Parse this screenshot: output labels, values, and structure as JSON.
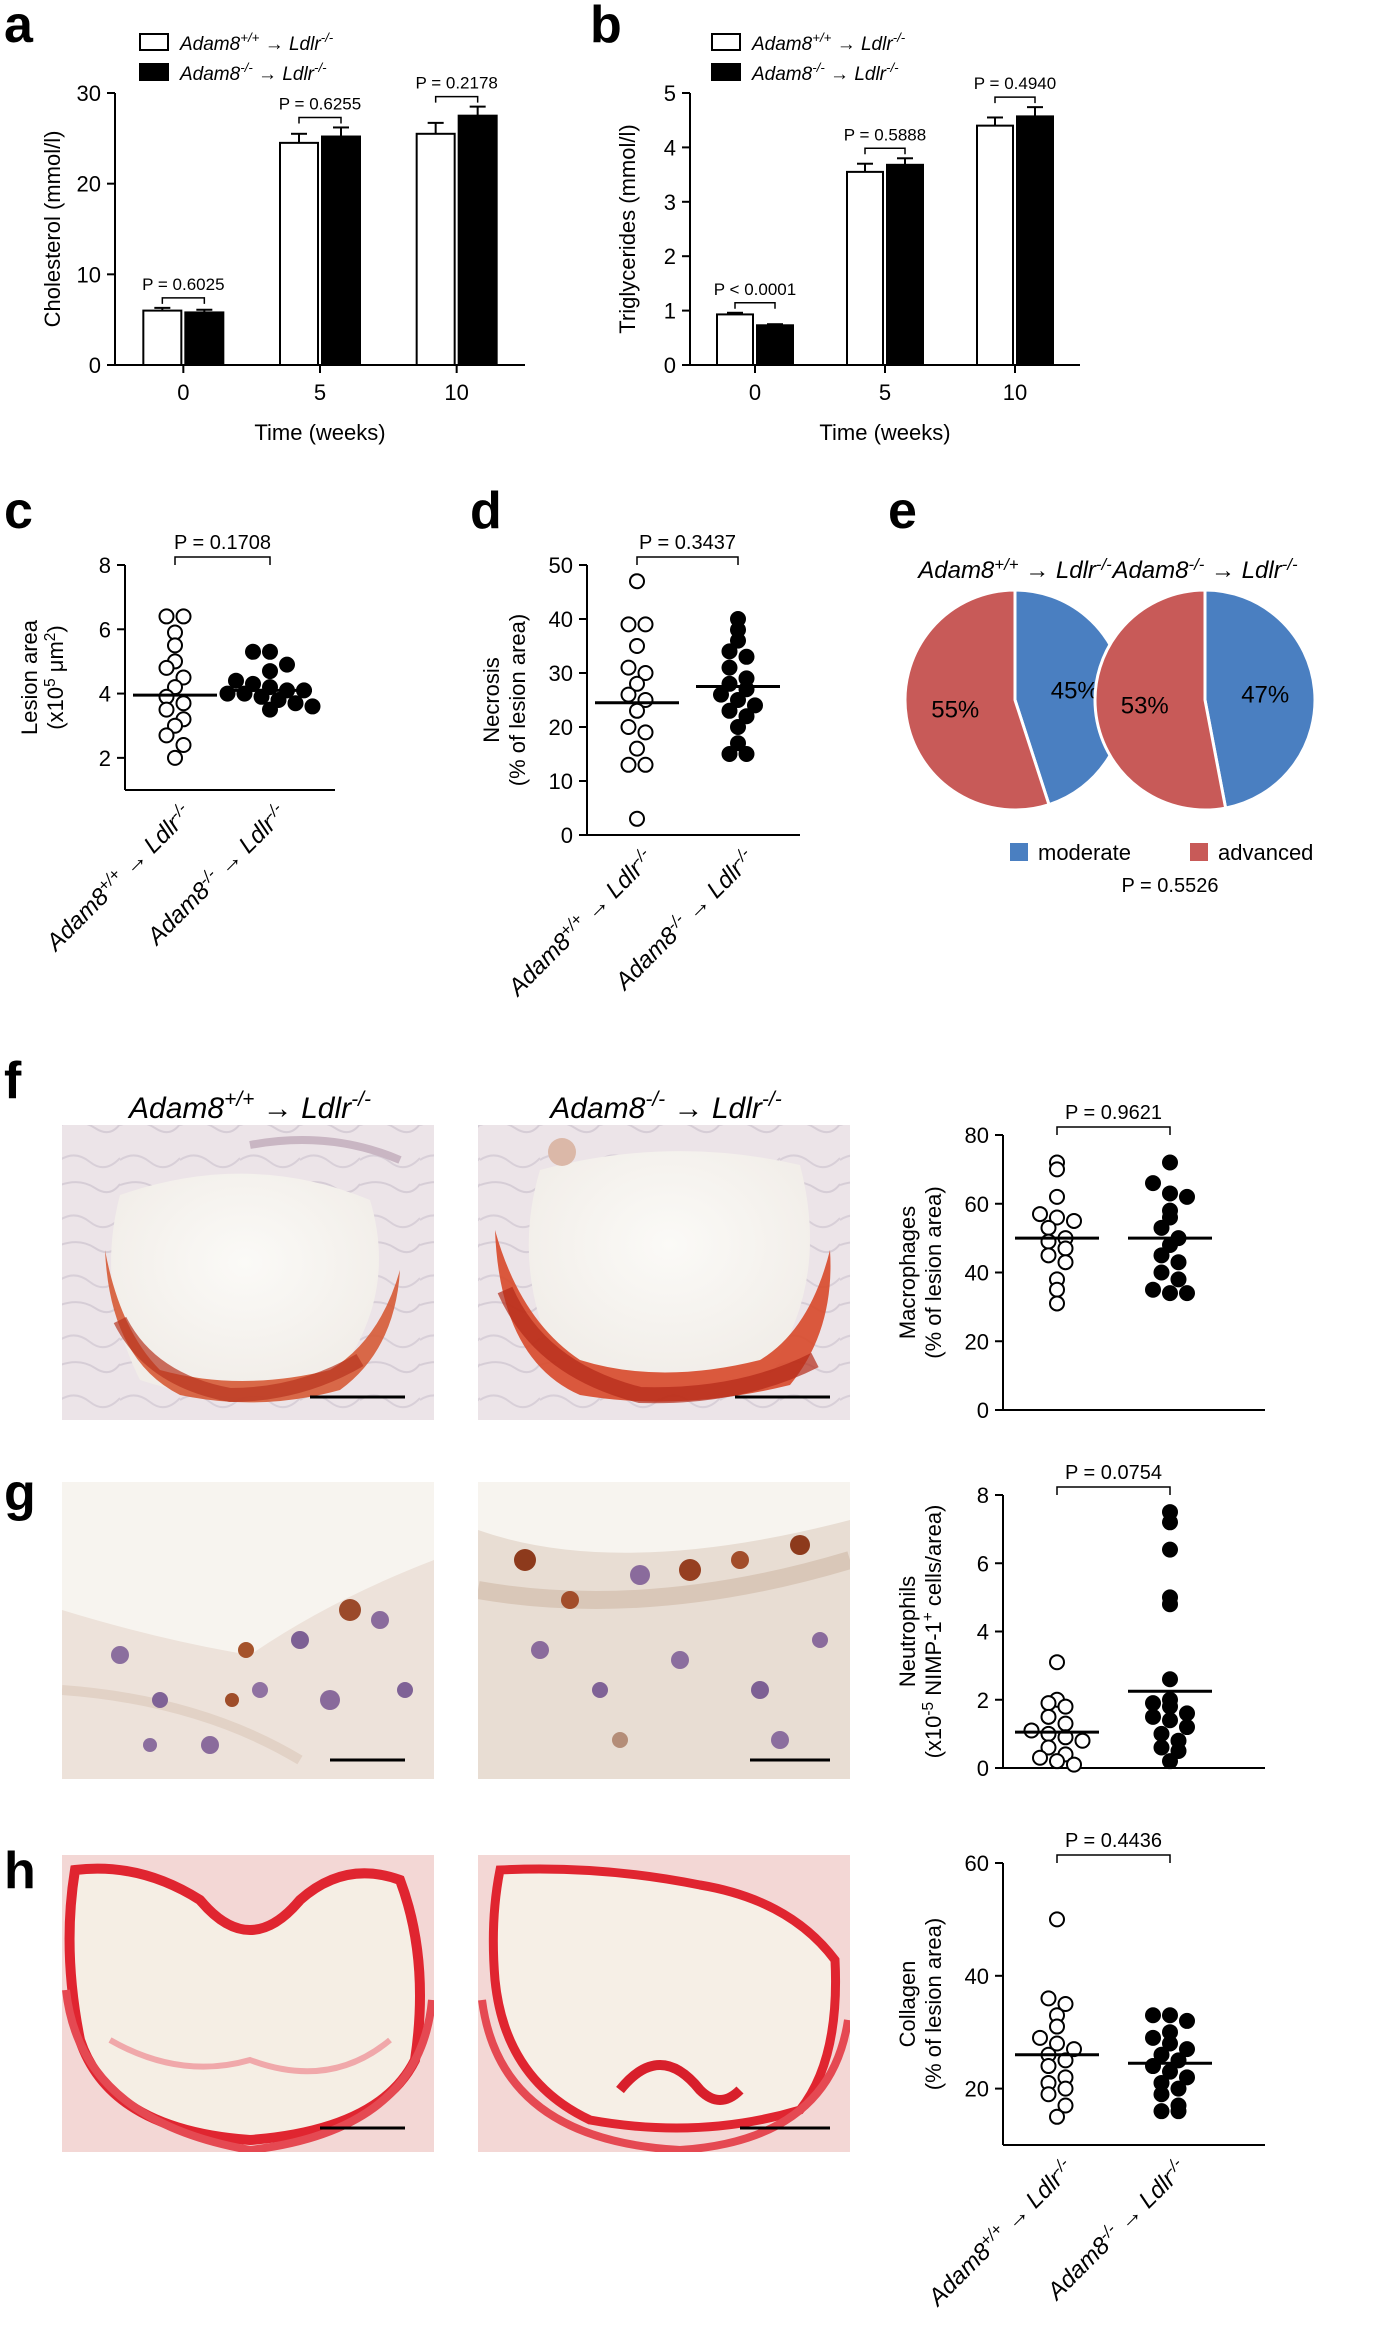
{
  "colors": {
    "moderate": "#4a7fc1",
    "advanced": "#c85a58",
    "wildtype_fill": "#ffffff",
    "knockout_fill": "#000000",
    "oil_red_o_stain": "#d9502e",
    "sirius_red_stain": "#e0242e"
  },
  "groups": {
    "wt": {
      "main": "Adam8",
      "sup": "+/+",
      "arrow": " → Ldlr",
      "sup2": "-/-"
    },
    "ko": {
      "main": "Adam8",
      "sup": "-/-",
      "arrow": " → Ldlr",
      "sup2": "-/-"
    }
  },
  "panel_labels": {
    "a": "a",
    "b": "b",
    "c": "c",
    "d": "d",
    "e": "e",
    "f": "f",
    "g": "g",
    "h": "h"
  },
  "chart_data": [
    {
      "id": "a",
      "type": "bar",
      "xlabel": "Time (weeks)",
      "ylabel": "Cholesterol (mmol/l)",
      "categories": [
        "0",
        "5",
        "10"
      ],
      "series": [
        {
          "name": "Adam8+/+ → Ldlr-/-",
          "values": [
            6.0,
            24.5,
            25.5
          ],
          "errors": [
            0.3,
            1.0,
            1.2
          ]
        },
        {
          "name": "Adam8-/- → Ldlr-/-",
          "values": [
            5.8,
            25.2,
            27.5
          ],
          "errors": [
            0.3,
            1.0,
            1.0
          ]
        }
      ],
      "ylim": [
        0,
        30
      ],
      "yticks": [
        "0",
        "10",
        "20",
        "30"
      ],
      "pvalues": [
        "P = 0.6025",
        "P = 0.6255",
        "P = 0.2178"
      ],
      "legend": "top-left"
    },
    {
      "id": "b",
      "type": "bar",
      "xlabel": "Time (weeks)",
      "ylabel": "Triglycerides (mmol/l)",
      "categories": [
        "0",
        "5",
        "10"
      ],
      "series": [
        {
          "name": "Adam8+/+ → Ldlr-/-",
          "values": [
            0.93,
            3.55,
            4.4
          ],
          "errors": [
            0.03,
            0.15,
            0.15
          ]
        },
        {
          "name": "Adam8-/- → Ldlr-/-",
          "values": [
            0.73,
            3.68,
            4.57
          ],
          "errors": [
            0.02,
            0.12,
            0.17
          ]
        }
      ],
      "ylim": [
        0,
        5
      ],
      "yticks": [
        "0",
        "1",
        "2",
        "3",
        "4",
        "5"
      ],
      "pvalues": [
        "P < 0.0001",
        "P = 0.5888",
        "P = 0.4940"
      ],
      "legend": "top-left"
    },
    {
      "id": "c",
      "type": "scatter",
      "ylabel_line1": "Lesion area",
      "ylabel_line2_pre": "(x10",
      "ylabel_line2_sup": "5",
      "ylabel_line2_mid": " μm",
      "ylabel_line2_sup2": "2",
      "ylabel_line2_post": ")",
      "ylim": [
        1,
        8
      ],
      "yticks": [
        "2",
        "4",
        "6",
        "8"
      ],
      "pvalue": "P = 0.1708",
      "series": [
        {
          "name": "Adam8+/+ → Ldlr-/-",
          "values": [
            6.4,
            6.4,
            5.9,
            5.5,
            5.0,
            4.8,
            4.5,
            4.2,
            3.9,
            3.7,
            3.5,
            3.2,
            3.0,
            2.7,
            2.4,
            2.0
          ],
          "mean": 3.95
        },
        {
          "name": "Adam8-/- → Ldlr-/-",
          "values": [
            5.3,
            5.3,
            4.9,
            4.7,
            4.4,
            4.3,
            4.2,
            4.1,
            4.1,
            4.0,
            4.0,
            3.9,
            3.8,
            3.7,
            3.6,
            3.5
          ],
          "mean": 4.1
        }
      ]
    },
    {
      "id": "d",
      "type": "scatter",
      "ylabel_line1": "Necrosis",
      "ylabel_line2": "(% of lesion area)",
      "ylim": [
        0,
        50
      ],
      "yticks": [
        "0",
        "10",
        "20",
        "30",
        "40",
        "50"
      ],
      "pvalue": "P = 0.3437",
      "series": [
        {
          "name": "Adam8+/+ → Ldlr-/-",
          "values": [
            47,
            39,
            39,
            35,
            31,
            30,
            28,
            26,
            25,
            23,
            20,
            19,
            16,
            13,
            13,
            3
          ],
          "mean": 24.5
        },
        {
          "name": "Adam8-/- → Ldlr-/-",
          "values": [
            40,
            38,
            36,
            34,
            33,
            31,
            29,
            28,
            27,
            26,
            25,
            24,
            23,
            22,
            20,
            17,
            15,
            15
          ],
          "mean": 27.5
        }
      ]
    },
    {
      "id": "e",
      "type": "pie",
      "titles": [
        "Adam8+/+ → Ldlr-/-",
        "Adam8-/- → Ldlr-/-"
      ],
      "pies": [
        {
          "moderate": 45,
          "advanced": 55,
          "moderate_label": "45%",
          "advanced_label": "55%"
        },
        {
          "moderate": 47,
          "advanced": 53,
          "moderate_label": "47%",
          "advanced_label": "53%"
        }
      ],
      "legend": [
        "moderate",
        "advanced"
      ],
      "pvalue": "P = 0.5526"
    },
    {
      "id": "f",
      "type": "scatter",
      "ylabel_line1": "Macrophages",
      "ylabel_line2": "(% of lesion area)",
      "ylim": [
        0,
        80
      ],
      "yticks": [
        "0",
        "20",
        "40",
        "60",
        "80"
      ],
      "pvalue": "P = 0.9621",
      "series": [
        {
          "name": "Adam8+/+ → Ldlr-/-",
          "values": [
            72,
            70,
            62,
            57,
            56,
            55,
            53,
            50,
            49,
            47,
            45,
            43,
            38,
            35,
            31
          ],
          "mean": 50
        },
        {
          "name": "Adam8-/- → Ldlr-/-",
          "values": [
            72,
            66,
            63,
            62,
            58,
            56,
            53,
            50,
            48,
            45,
            43,
            40,
            38,
            35,
            34,
            34
          ],
          "mean": 50
        }
      ]
    },
    {
      "id": "g",
      "type": "scatter",
      "ylabel_line1": "Neutrophils",
      "ylabel_line2_pre": "(x10",
      "ylabel_line2_sup": "-5",
      "ylabel_line2_mid": " NIMP-1",
      "ylabel_line2_sup2": "+",
      "ylabel_line2_post": " cells/area)",
      "ylim": [
        0,
        8
      ],
      "yticks": [
        "0",
        "2",
        "4",
        "6",
        "8"
      ],
      "pvalue": "P = 0.0754",
      "series": [
        {
          "name": "Adam8+/+ → Ldlr-/-",
          "values": [
            3.1,
            2.0,
            1.9,
            1.8,
            1.5,
            1.3,
            1.1,
            1.0,
            0.9,
            0.8,
            0.6,
            0.4,
            0.3,
            0.2,
            0.1
          ],
          "mean": 1.05
        },
        {
          "name": "Adam8-/- → Ldlr-/-",
          "values": [
            7.5,
            7.2,
            6.4,
            5.0,
            4.8,
            2.6,
            2.0,
            1.9,
            1.8,
            1.6,
            1.5,
            1.4,
            1.2,
            1.0,
            0.8,
            0.6,
            0.5,
            0.2
          ],
          "mean": 2.25
        }
      ]
    },
    {
      "id": "h",
      "type": "scatter",
      "ylabel_line1": "Collagen",
      "ylabel_line2": "(% of lesion area)",
      "ylim": [
        10,
        60
      ],
      "yticks": [
        "20",
        "40",
        "60"
      ],
      "pvalue": "P = 0.4436",
      "series": [
        {
          "name": "Adam8+/+ → Ldlr-/-",
          "values": [
            50,
            36,
            35,
            33,
            31,
            29,
            28,
            27,
            26,
            25,
            24,
            22,
            21,
            20,
            19,
            17,
            15
          ],
          "mean": 26
        },
        {
          "name": "Adam8-/- → Ldlr-/-",
          "values": [
            33,
            33,
            32,
            30,
            29,
            28,
            27,
            26,
            25,
            24,
            23,
            22,
            21,
            20,
            19,
            17,
            16,
            16
          ],
          "mean": 24.5
        }
      ]
    }
  ]
}
